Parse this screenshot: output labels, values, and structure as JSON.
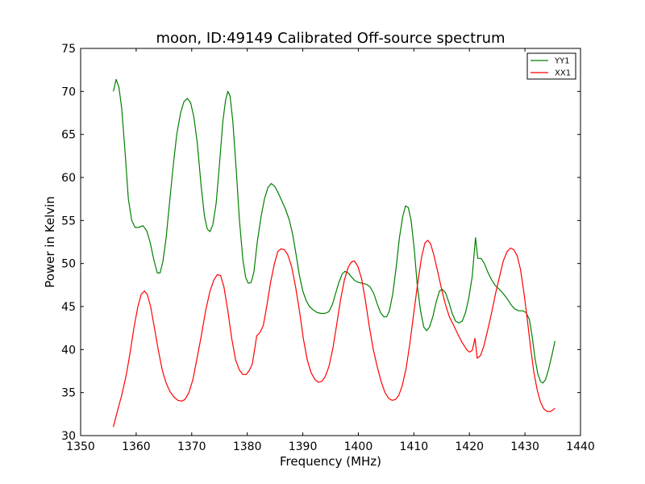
{
  "chart_data": {
    "type": "line",
    "title": "moon, ID:49149 Calibrated Off-source spectrum",
    "xlabel": "Frequency (MHz)",
    "ylabel": "Power in Kelvin",
    "xlim": [
      1350,
      1440
    ],
    "ylim": [
      30,
      75
    ],
    "xticks": [
      1350,
      1360,
      1370,
      1380,
      1390,
      1400,
      1410,
      1420,
      1430,
      1440
    ],
    "yticks": [
      30,
      35,
      40,
      45,
      50,
      55,
      60,
      65,
      70,
      75
    ],
    "grid": false,
    "legend": "top-right",
    "series": [
      {
        "name": "YY1",
        "color": "#008000",
        "points": [
          [
            1355.9,
            70.0
          ],
          [
            1356.4,
            71.4
          ],
          [
            1356.9,
            70.5
          ],
          [
            1357.4,
            68.0
          ],
          [
            1358.0,
            63.0
          ],
          [
            1358.6,
            57.5
          ],
          [
            1359.2,
            55.0
          ],
          [
            1359.8,
            54.2
          ],
          [
            1360.5,
            54.2
          ],
          [
            1361.2,
            54.4
          ],
          [
            1361.9,
            53.8
          ],
          [
            1362.5,
            52.5
          ],
          [
            1363.2,
            50.4
          ],
          [
            1363.8,
            48.9
          ],
          [
            1364.3,
            48.9
          ],
          [
            1364.8,
            50.2
          ],
          [
            1365.4,
            53.0
          ],
          [
            1366.0,
            57.0
          ],
          [
            1366.7,
            61.5
          ],
          [
            1367.3,
            65.0
          ],
          [
            1368.0,
            67.5
          ],
          [
            1368.6,
            68.8
          ],
          [
            1369.2,
            69.2
          ],
          [
            1369.8,
            68.7
          ],
          [
            1370.4,
            67.0
          ],
          [
            1371.0,
            64.0
          ],
          [
            1371.7,
            59.0
          ],
          [
            1372.3,
            55.5
          ],
          [
            1372.8,
            54.0
          ],
          [
            1373.3,
            53.7
          ],
          [
            1373.8,
            54.5
          ],
          [
            1374.4,
            57.0
          ],
          [
            1375.0,
            61.5
          ],
          [
            1375.6,
            66.5
          ],
          [
            1376.1,
            69.0
          ],
          [
            1376.5,
            70.0
          ],
          [
            1376.9,
            69.5
          ],
          [
            1377.4,
            66.5
          ],
          [
            1378.0,
            61.0
          ],
          [
            1378.6,
            55.0
          ],
          [
            1379.2,
            50.5
          ],
          [
            1379.7,
            48.4
          ],
          [
            1380.2,
            47.7
          ],
          [
            1380.7,
            47.8
          ],
          [
            1381.2,
            49.0
          ],
          [
            1381.8,
            52.5
          ],
          [
            1382.5,
            55.5
          ],
          [
            1383.1,
            57.5
          ],
          [
            1383.7,
            58.8
          ],
          [
            1384.3,
            59.3
          ],
          [
            1384.9,
            59.0
          ],
          [
            1385.5,
            58.3
          ],
          [
            1386.2,
            57.3
          ],
          [
            1386.9,
            56.3
          ],
          [
            1387.6,
            55.0
          ],
          [
            1388.2,
            53.3
          ],
          [
            1388.8,
            51.0
          ],
          [
            1389.4,
            48.6
          ],
          [
            1390.0,
            46.8
          ],
          [
            1390.6,
            45.7
          ],
          [
            1391.2,
            45.0
          ],
          [
            1391.9,
            44.6
          ],
          [
            1392.6,
            44.3
          ],
          [
            1393.3,
            44.2
          ],
          [
            1394.0,
            44.2
          ],
          [
            1394.7,
            44.4
          ],
          [
            1395.3,
            45.2
          ],
          [
            1395.9,
            46.5
          ],
          [
            1396.5,
            47.8
          ],
          [
            1397.1,
            48.8
          ],
          [
            1397.6,
            49.1
          ],
          [
            1398.2,
            48.9
          ],
          [
            1398.8,
            48.4
          ],
          [
            1399.4,
            48.0
          ],
          [
            1400.0,
            47.8
          ],
          [
            1400.7,
            47.7
          ],
          [
            1401.4,
            47.6
          ],
          [
            1402.1,
            47.3
          ],
          [
            1402.8,
            46.5
          ],
          [
            1403.4,
            45.3
          ],
          [
            1404.0,
            44.3
          ],
          [
            1404.6,
            43.8
          ],
          [
            1405.1,
            43.8
          ],
          [
            1405.6,
            44.5
          ],
          [
            1406.2,
            46.5
          ],
          [
            1406.8,
            49.5
          ],
          [
            1407.4,
            53.0
          ],
          [
            1408.0,
            55.5
          ],
          [
            1408.5,
            56.7
          ],
          [
            1409.0,
            56.5
          ],
          [
            1409.5,
            55.0
          ],
          [
            1410.1,
            51.5
          ],
          [
            1410.6,
            47.5
          ],
          [
            1411.2,
            44.5
          ],
          [
            1411.8,
            42.6
          ],
          [
            1412.3,
            42.2
          ],
          [
            1412.8,
            42.6
          ],
          [
            1413.4,
            43.8
          ],
          [
            1414.0,
            45.5
          ],
          [
            1414.6,
            46.8
          ],
          [
            1415.1,
            47.0
          ],
          [
            1415.7,
            46.6
          ],
          [
            1416.3,
            45.5
          ],
          [
            1416.9,
            44.2
          ],
          [
            1417.5,
            43.3
          ],
          [
            1418.1,
            43.1
          ],
          [
            1418.7,
            43.3
          ],
          [
            1419.3,
            44.3
          ],
          [
            1419.9,
            46.0
          ],
          [
            1420.5,
            48.5
          ],
          [
            1420.9,
            51.5
          ],
          [
            1421.1,
            53.0
          ],
          [
            1421.5,
            50.6
          ],
          [
            1422.1,
            50.6
          ],
          [
            1422.7,
            50.0
          ],
          [
            1423.3,
            49.0
          ],
          [
            1424.0,
            48.1
          ],
          [
            1424.7,
            47.4
          ],
          [
            1425.4,
            47.0
          ],
          [
            1426.1,
            46.5
          ],
          [
            1426.8,
            45.9
          ],
          [
            1427.5,
            45.2
          ],
          [
            1428.2,
            44.7
          ],
          [
            1428.9,
            44.5
          ],
          [
            1429.6,
            44.5
          ],
          [
            1430.2,
            44.3
          ],
          [
            1430.8,
            43.5
          ],
          [
            1431.3,
            41.5
          ],
          [
            1431.8,
            39.0
          ],
          [
            1432.3,
            37.2
          ],
          [
            1432.8,
            36.3
          ],
          [
            1433.2,
            36.1
          ],
          [
            1433.7,
            36.5
          ],
          [
            1434.3,
            37.8
          ],
          [
            1434.9,
            39.5
          ],
          [
            1435.4,
            41.0
          ]
        ]
      },
      {
        "name": "XX1",
        "color": "#ff0000",
        "points": [
          [
            1355.9,
            31.0
          ],
          [
            1356.6,
            32.8
          ],
          [
            1357.4,
            34.7
          ],
          [
            1358.2,
            37.0
          ],
          [
            1358.9,
            39.6
          ],
          [
            1359.6,
            42.5
          ],
          [
            1360.3,
            45.0
          ],
          [
            1360.9,
            46.4
          ],
          [
            1361.5,
            46.8
          ],
          [
            1362.0,
            46.4
          ],
          [
            1362.6,
            45.0
          ],
          [
            1363.3,
            42.5
          ],
          [
            1364.0,
            39.9
          ],
          [
            1364.7,
            37.6
          ],
          [
            1365.4,
            36.1
          ],
          [
            1366.1,
            35.1
          ],
          [
            1366.8,
            34.5
          ],
          [
            1367.5,
            34.1
          ],
          [
            1368.2,
            34.0
          ],
          [
            1368.8,
            34.2
          ],
          [
            1369.5,
            35.0
          ],
          [
            1370.2,
            36.5
          ],
          [
            1370.9,
            38.8
          ],
          [
            1371.7,
            41.5
          ],
          [
            1372.5,
            44.5
          ],
          [
            1373.3,
            46.8
          ],
          [
            1374.0,
            48.1
          ],
          [
            1374.6,
            48.7
          ],
          [
            1375.2,
            48.6
          ],
          [
            1375.8,
            47.3
          ],
          [
            1376.5,
            44.5
          ],
          [
            1377.2,
            41.3
          ],
          [
            1377.9,
            38.8
          ],
          [
            1378.6,
            37.6
          ],
          [
            1379.2,
            37.1
          ],
          [
            1379.8,
            37.1
          ],
          [
            1380.4,
            37.6
          ],
          [
            1380.9,
            38.3
          ],
          [
            1381.4,
            40.3
          ],
          [
            1381.7,
            41.6
          ],
          [
            1382.3,
            42.0
          ],
          [
            1382.9,
            42.8
          ],
          [
            1383.5,
            45.0
          ],
          [
            1384.2,
            47.8
          ],
          [
            1384.9,
            50.0
          ],
          [
            1385.5,
            51.4
          ],
          [
            1386.1,
            51.7
          ],
          [
            1386.7,
            51.6
          ],
          [
            1387.3,
            51.0
          ],
          [
            1388.0,
            49.6
          ],
          [
            1388.7,
            47.3
          ],
          [
            1389.4,
            44.5
          ],
          [
            1390.1,
            41.3
          ],
          [
            1390.8,
            38.8
          ],
          [
            1391.5,
            37.3
          ],
          [
            1392.2,
            36.5
          ],
          [
            1392.8,
            36.2
          ],
          [
            1393.4,
            36.3
          ],
          [
            1394.0,
            36.8
          ],
          [
            1394.7,
            38.0
          ],
          [
            1395.4,
            40.1
          ],
          [
            1396.1,
            42.9
          ],
          [
            1396.8,
            45.8
          ],
          [
            1397.5,
            48.1
          ],
          [
            1398.2,
            49.6
          ],
          [
            1398.8,
            50.2
          ],
          [
            1399.3,
            50.3
          ],
          [
            1399.9,
            49.7
          ],
          [
            1400.6,
            48.2
          ],
          [
            1401.3,
            45.6
          ],
          [
            1402.0,
            42.6
          ],
          [
            1402.7,
            40.0
          ],
          [
            1403.4,
            38.0
          ],
          [
            1404.1,
            36.3
          ],
          [
            1404.8,
            35.0
          ],
          [
            1405.5,
            34.3
          ],
          [
            1406.1,
            34.1
          ],
          [
            1406.7,
            34.2
          ],
          [
            1407.3,
            34.7
          ],
          [
            1407.9,
            35.8
          ],
          [
            1408.6,
            37.8
          ],
          [
            1409.3,
            40.8
          ],
          [
            1410.0,
            44.3
          ],
          [
            1410.7,
            47.8
          ],
          [
            1411.4,
            50.8
          ],
          [
            1412.0,
            52.4
          ],
          [
            1412.5,
            52.7
          ],
          [
            1413.0,
            52.3
          ],
          [
            1413.6,
            51.0
          ],
          [
            1414.3,
            49.0
          ],
          [
            1415.0,
            47.0
          ],
          [
            1415.7,
            45.2
          ],
          [
            1416.4,
            43.8
          ],
          [
            1417.1,
            42.9
          ],
          [
            1417.9,
            41.8
          ],
          [
            1418.7,
            40.8
          ],
          [
            1419.5,
            40.0
          ],
          [
            1420.0,
            39.7
          ],
          [
            1420.5,
            39.9
          ],
          [
            1420.8,
            40.7
          ],
          [
            1421.0,
            41.3
          ],
          [
            1421.4,
            39.0
          ],
          [
            1422.0,
            39.3
          ],
          [
            1422.6,
            40.4
          ],
          [
            1423.3,
            42.3
          ],
          [
            1424.0,
            44.3
          ],
          [
            1424.7,
            46.5
          ],
          [
            1425.4,
            48.4
          ],
          [
            1426.1,
            50.3
          ],
          [
            1426.8,
            51.4
          ],
          [
            1427.4,
            51.8
          ],
          [
            1428.0,
            51.6
          ],
          [
            1428.6,
            50.9
          ],
          [
            1429.2,
            49.3
          ],
          [
            1429.8,
            46.7
          ],
          [
            1430.4,
            43.6
          ],
          [
            1431.0,
            40.3
          ],
          [
            1431.6,
            37.4
          ],
          [
            1432.2,
            35.3
          ],
          [
            1432.8,
            33.9
          ],
          [
            1433.4,
            33.1
          ],
          [
            1434.0,
            32.8
          ],
          [
            1434.6,
            32.8
          ],
          [
            1435.1,
            33.0
          ],
          [
            1435.4,
            33.2
          ]
        ]
      }
    ]
  }
}
